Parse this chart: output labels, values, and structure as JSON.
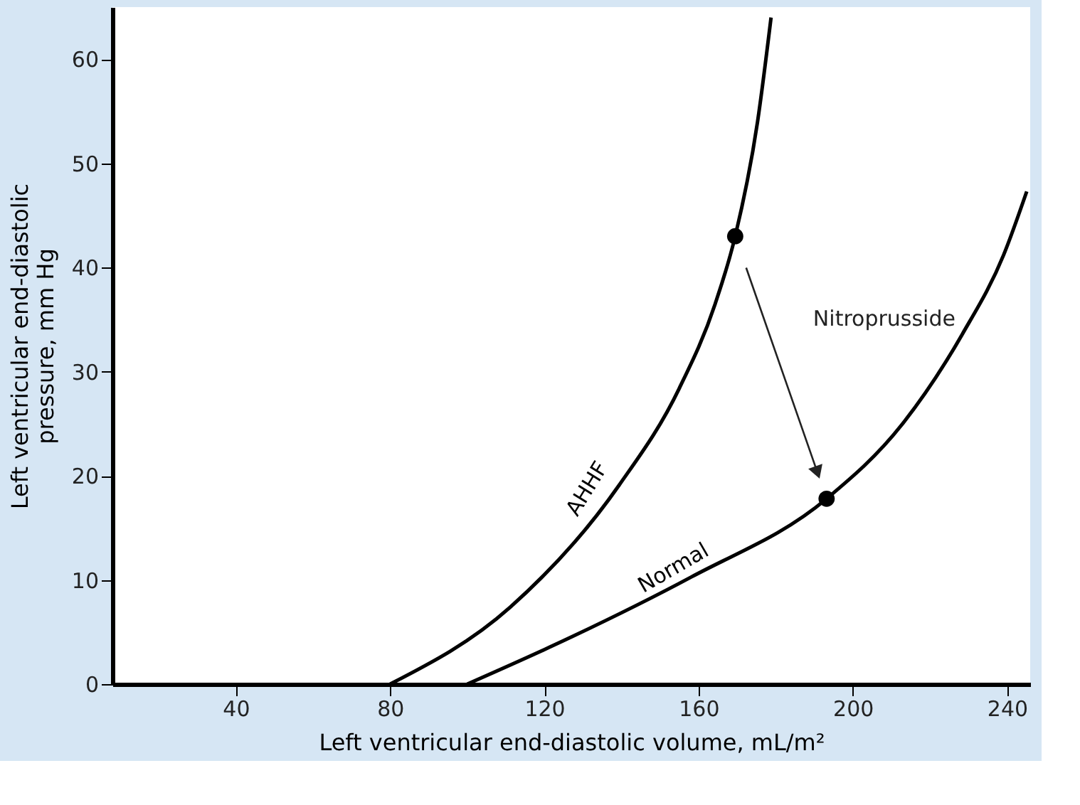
{
  "chart_data": {
    "type": "line",
    "xlabel": "Left ventricular end-diastolic volume, mL/m²",
    "ylabel": "Left ventricular end-diastolic pressure, mm Hg",
    "xlim": [
      8,
      246
    ],
    "xticks": [
      40,
      80,
      120,
      160,
      200,
      240
    ],
    "ylim": [
      0,
      65
    ],
    "yticks": [
      0,
      10,
      20,
      30,
      40,
      50,
      60
    ],
    "grid": false,
    "series": [
      {
        "name": "AHHF",
        "color": "#000000",
        "x": [
          80,
          111.2,
          139.4,
          155,
          164.3,
          169.5,
          175.3,
          178.8
        ],
        "values": [
          0,
          7.4,
          19.1,
          28.4,
          36.5,
          43.0,
          54.0,
          64.0
        ]
      },
      {
        "name": "Normal",
        "color": "#000000",
        "x": [
          100,
          126.9,
          158.2,
          193.2,
          212.7,
          228.4,
          239.1,
          245.1
        ],
        "values": [
          0,
          4.5,
          10.3,
          17.8,
          24.9,
          33.6,
          41.2,
          47.3
        ]
      },
      {
        "type": "scatter",
        "marker": "circle",
        "color": "#000000",
        "x": [
          169.5,
          193.2
        ],
        "values": [
          43.0,
          17.8
        ]
      }
    ],
    "annotations": [
      "Nitroprusside"
    ]
  }
}
